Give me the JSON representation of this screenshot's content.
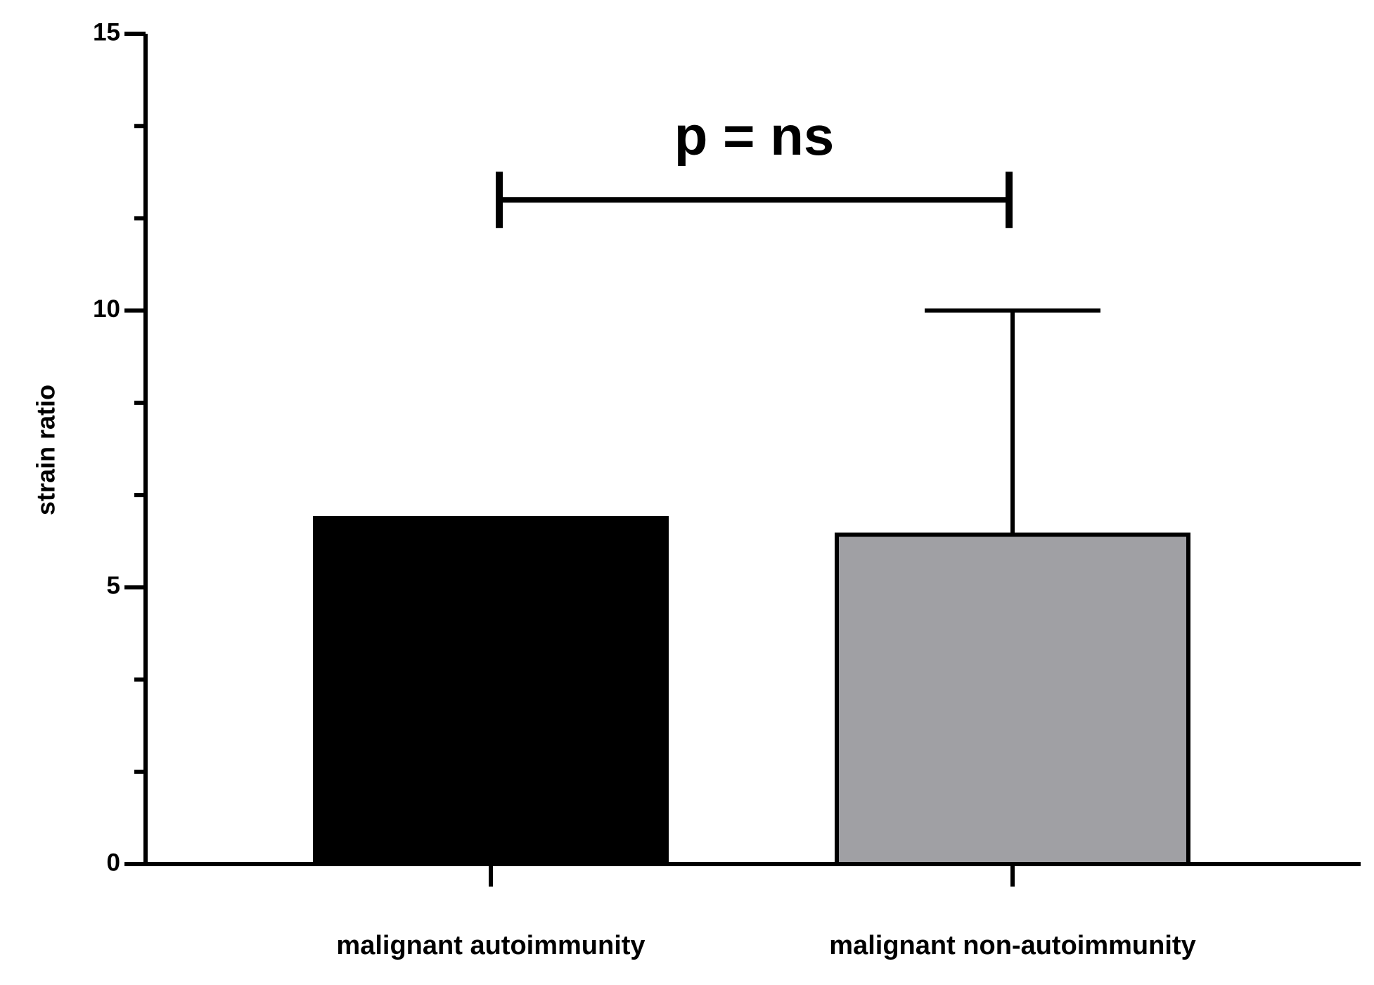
{
  "chart_data": {
    "type": "bar",
    "y_label": "strain ratio",
    "categories": [
      "malignant autoimmunity",
      "malignant non-autoimmunity"
    ],
    "values": [
      6.25,
      5.95
    ],
    "errors": [
      null,
      4.05
    ],
    "colors": [
      "#000000",
      "#a0a0a4"
    ],
    "ylim": [
      0,
      15
    ],
    "yticks": [
      0,
      5,
      10,
      15
    ],
    "y_minor_per_major": 3,
    "annotation": {
      "text": "p = ns",
      "y": 12
    }
  }
}
